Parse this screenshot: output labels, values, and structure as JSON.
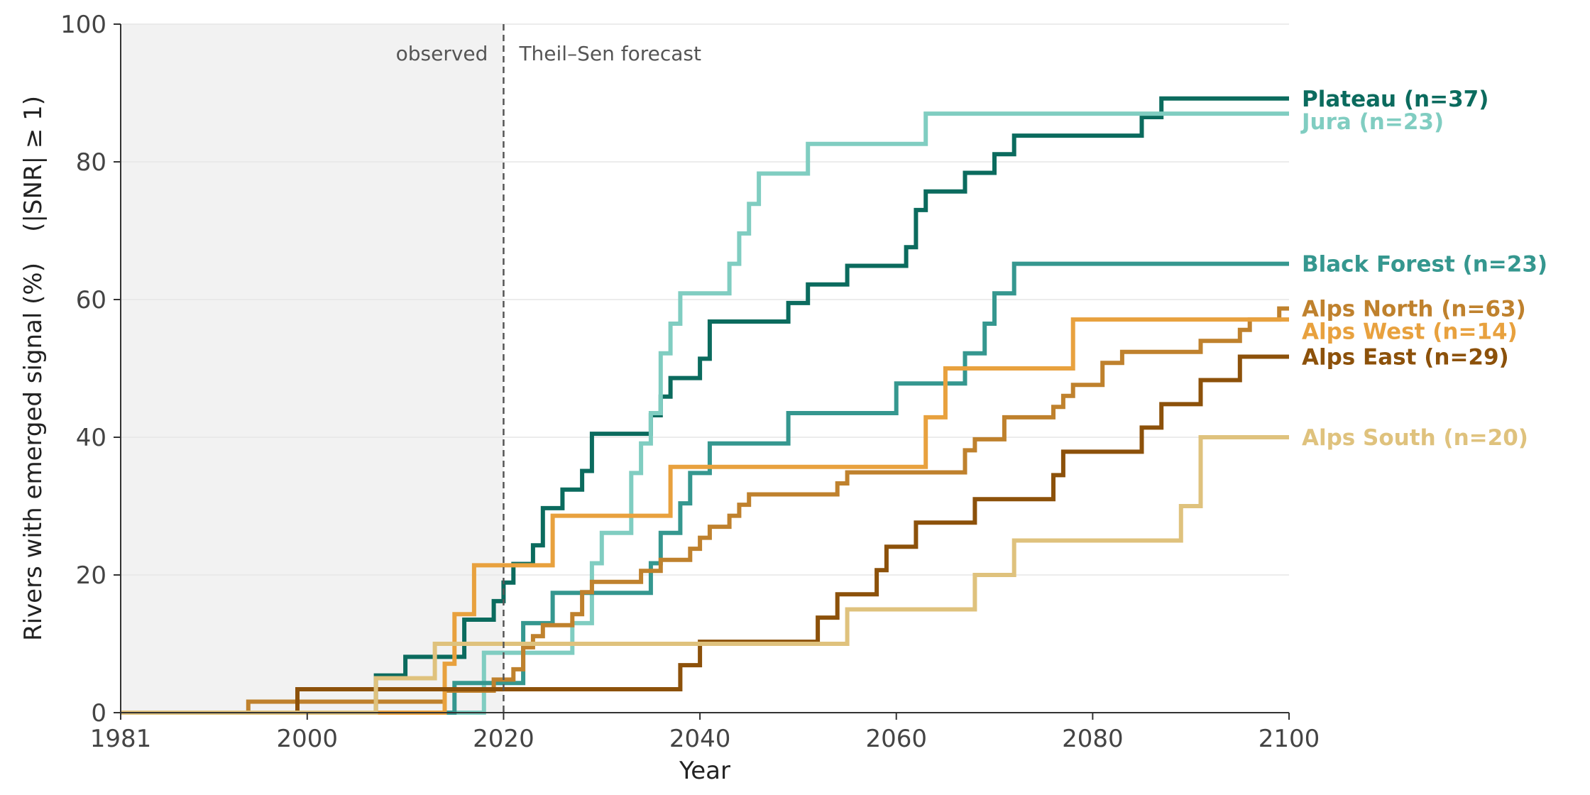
{
  "chart_data": {
    "type": "line",
    "step": true,
    "xlabel": "Year",
    "ylabel": "Rivers with emerged signal (%)    (|SNR| ≥ 1)",
    "xlim": [
      1981,
      2100
    ],
    "ylim": [
      0,
      100
    ],
    "xticks": [
      "1981",
      "2000",
      "2020",
      "2040",
      "2060",
      "2080",
      "2100"
    ],
    "xtick_values": [
      1981,
      2000,
      2020,
      2040,
      2060,
      2080,
      2100
    ],
    "yticks": [
      "0",
      "20",
      "40",
      "60",
      "80",
      "100"
    ],
    "ytick_values": [
      0,
      20,
      40,
      60,
      80,
      100
    ],
    "grid": "horizontal",
    "observed_end": 2020,
    "annotations": {
      "observed": "observed",
      "forecast": "Theil–Sen forecast"
    },
    "colors": {
      "observed_band": "#f2f2f2",
      "divider": "#555555",
      "grid": "#e6e6e6"
    },
    "series": [
      {
        "name": "Plateau  (n=37)",
        "color": "#0b6b5e",
        "points": [
          [
            1981,
            0
          ],
          [
            2007,
            0
          ],
          [
            2007,
            5.4
          ],
          [
            2010,
            5.4
          ],
          [
            2010,
            8.1
          ],
          [
            2016,
            8.1
          ],
          [
            2016,
            13.5
          ],
          [
            2019,
            13.5
          ],
          [
            2019,
            16.2
          ],
          [
            2020,
            16.2
          ],
          [
            2020,
            18.9
          ],
          [
            2021,
            18.9
          ],
          [
            2021,
            21.6
          ],
          [
            2023,
            21.6
          ],
          [
            2023,
            24.3
          ],
          [
            2024,
            24.3
          ],
          [
            2024,
            29.7
          ],
          [
            2026,
            29.7
          ],
          [
            2026,
            32.4
          ],
          [
            2028,
            32.4
          ],
          [
            2028,
            35.1
          ],
          [
            2029,
            35.1
          ],
          [
            2029,
            40.5
          ],
          [
            2035,
            40.5
          ],
          [
            2035,
            43.2
          ],
          [
            2036,
            43.2
          ],
          [
            2036,
            45.9
          ],
          [
            2037,
            45.9
          ],
          [
            2037,
            48.6
          ],
          [
            2040,
            48.6
          ],
          [
            2040,
            51.4
          ],
          [
            2041,
            51.4
          ],
          [
            2041,
            56.8
          ],
          [
            2049,
            56.8
          ],
          [
            2049,
            59.5
          ],
          [
            2051,
            59.5
          ],
          [
            2051,
            62.2
          ],
          [
            2055,
            62.2
          ],
          [
            2055,
            64.9
          ],
          [
            2061,
            64.9
          ],
          [
            2061,
            67.6
          ],
          [
            2062,
            67.6
          ],
          [
            2062,
            73.0
          ],
          [
            2063,
            73.0
          ],
          [
            2063,
            75.7
          ],
          [
            2067,
            75.7
          ],
          [
            2067,
            78.4
          ],
          [
            2070,
            78.4
          ],
          [
            2070,
            81.1
          ],
          [
            2072,
            81.1
          ],
          [
            2072,
            83.8
          ],
          [
            2085,
            83.8
          ],
          [
            2085,
            86.5
          ],
          [
            2087,
            86.5
          ],
          [
            2087,
            89.2
          ],
          [
            2100,
            89.2
          ]
        ]
      },
      {
        "name": "Jura  (n=23)",
        "color": "#80cdc1",
        "points": [
          [
            1981,
            0
          ],
          [
            2018,
            0
          ],
          [
            2018,
            8.7
          ],
          [
            2027,
            8.7
          ],
          [
            2027,
            13.0
          ],
          [
            2029,
            13.0
          ],
          [
            2029,
            21.7
          ],
          [
            2030,
            21.7
          ],
          [
            2030,
            26.1
          ],
          [
            2033,
            26.1
          ],
          [
            2033,
            34.8
          ],
          [
            2034,
            34.8
          ],
          [
            2034,
            39.1
          ],
          [
            2035,
            39.1
          ],
          [
            2035,
            43.5
          ],
          [
            2036,
            43.5
          ],
          [
            2036,
            52.2
          ],
          [
            2037,
            52.2
          ],
          [
            2037,
            56.5
          ],
          [
            2038,
            56.5
          ],
          [
            2038,
            60.9
          ],
          [
            2043,
            60.9
          ],
          [
            2043,
            65.2
          ],
          [
            2044,
            65.2
          ],
          [
            2044,
            69.6
          ],
          [
            2045,
            69.6
          ],
          [
            2045,
            73.9
          ],
          [
            2046,
            73.9
          ],
          [
            2046,
            78.3
          ],
          [
            2051,
            78.3
          ],
          [
            2051,
            82.6
          ],
          [
            2063,
            82.6
          ],
          [
            2063,
            87.0
          ],
          [
            2100,
            87.0
          ]
        ]
      },
      {
        "name": "Black Forest  (n=23)",
        "color": "#35978f",
        "points": [
          [
            1981,
            0
          ],
          [
            2015,
            0
          ],
          [
            2015,
            4.3
          ],
          [
            2022,
            4.3
          ],
          [
            2022,
            13.0
          ],
          [
            2025,
            13.0
          ],
          [
            2025,
            17.4
          ],
          [
            2035,
            17.4
          ],
          [
            2035,
            21.7
          ],
          [
            2036,
            21.7
          ],
          [
            2036,
            26.1
          ],
          [
            2038,
            26.1
          ],
          [
            2038,
            30.4
          ],
          [
            2039,
            30.4
          ],
          [
            2039,
            34.8
          ],
          [
            2041,
            34.8
          ],
          [
            2041,
            39.1
          ],
          [
            2049,
            39.1
          ],
          [
            2049,
            43.5
          ],
          [
            2060,
            43.5
          ],
          [
            2060,
            47.8
          ],
          [
            2067,
            47.8
          ],
          [
            2067,
            52.2
          ],
          [
            2069,
            52.2
          ],
          [
            2069,
            56.5
          ],
          [
            2070,
            56.5
          ],
          [
            2070,
            60.9
          ],
          [
            2072,
            60.9
          ],
          [
            2072,
            65.2
          ],
          [
            2100,
            65.2
          ]
        ]
      },
      {
        "name": "Alps North  (n=63)",
        "color": "#bf812d",
        "points": [
          [
            1981,
            0
          ],
          [
            1994,
            0
          ],
          [
            1994,
            1.6
          ],
          [
            2014,
            1.6
          ],
          [
            2014,
            3.2
          ],
          [
            2019,
            3.2
          ],
          [
            2019,
            4.8
          ],
          [
            2021,
            4.8
          ],
          [
            2021,
            6.3
          ],
          [
            2022,
            6.3
          ],
          [
            2022,
            9.5
          ],
          [
            2023,
            9.5
          ],
          [
            2023,
            11.1
          ],
          [
            2024,
            11.1
          ],
          [
            2024,
            12.7
          ],
          [
            2027,
            12.7
          ],
          [
            2027,
            14.3
          ],
          [
            2028,
            14.3
          ],
          [
            2028,
            17.5
          ],
          [
            2029,
            17.5
          ],
          [
            2029,
            19.0
          ],
          [
            2034,
            19.0
          ],
          [
            2034,
            20.6
          ],
          [
            2036,
            20.6
          ],
          [
            2036,
            22.2
          ],
          [
            2039,
            22.2
          ],
          [
            2039,
            23.8
          ],
          [
            2040,
            23.8
          ],
          [
            2040,
            25.4
          ],
          [
            2041,
            25.4
          ],
          [
            2041,
            27.0
          ],
          [
            2043,
            27.0
          ],
          [
            2043,
            28.6
          ],
          [
            2044,
            28.6
          ],
          [
            2044,
            30.2
          ],
          [
            2045,
            30.2
          ],
          [
            2045,
            31.7
          ],
          [
            2054,
            31.7
          ],
          [
            2054,
            33.3
          ],
          [
            2055,
            33.3
          ],
          [
            2055,
            34.9
          ],
          [
            2067,
            34.9
          ],
          [
            2067,
            38.1
          ],
          [
            2068,
            38.1
          ],
          [
            2068,
            39.7
          ],
          [
            2071,
            39.7
          ],
          [
            2071,
            42.9
          ],
          [
            2076,
            42.9
          ],
          [
            2076,
            44.4
          ],
          [
            2077,
            44.4
          ],
          [
            2077,
            46.0
          ],
          [
            2078,
            46.0
          ],
          [
            2078,
            47.6
          ],
          [
            2081,
            47.6
          ],
          [
            2081,
            50.8
          ],
          [
            2083,
            50.8
          ],
          [
            2083,
            52.4
          ],
          [
            2091,
            52.4
          ],
          [
            2091,
            54.0
          ],
          [
            2095,
            54.0
          ],
          [
            2095,
            55.6
          ],
          [
            2096,
            55.6
          ],
          [
            2096,
            57.1
          ],
          [
            2099,
            57.1
          ],
          [
            2099,
            58.7
          ],
          [
            2100,
            58.7
          ]
        ]
      },
      {
        "name": "Alps West  (n=14)",
        "color": "#e8a13e",
        "points": [
          [
            1981,
            0
          ],
          [
            2014,
            0
          ],
          [
            2014,
            7.1
          ],
          [
            2015,
            7.1
          ],
          [
            2015,
            14.3
          ],
          [
            2017,
            14.3
          ],
          [
            2017,
            21.4
          ],
          [
            2025,
            21.4
          ],
          [
            2025,
            28.6
          ],
          [
            2037,
            28.6
          ],
          [
            2037,
            35.7
          ],
          [
            2063,
            35.7
          ],
          [
            2063,
            42.9
          ],
          [
            2065,
            42.9
          ],
          [
            2065,
            50.0
          ],
          [
            2078,
            50.0
          ],
          [
            2078,
            57.1
          ],
          [
            2100,
            57.1
          ]
        ]
      },
      {
        "name": "Alps East  (n=29)",
        "color": "#8c510a",
        "points": [
          [
            1981,
            0
          ],
          [
            1999,
            0
          ],
          [
            1999,
            3.4
          ],
          [
            2038,
            3.4
          ],
          [
            2038,
            6.9
          ],
          [
            2040,
            6.9
          ],
          [
            2040,
            10.3
          ],
          [
            2052,
            10.3
          ],
          [
            2052,
            13.8
          ],
          [
            2054,
            13.8
          ],
          [
            2054,
            17.2
          ],
          [
            2058,
            17.2
          ],
          [
            2058,
            20.7
          ],
          [
            2059,
            20.7
          ],
          [
            2059,
            24.1
          ],
          [
            2062,
            24.1
          ],
          [
            2062,
            27.6
          ],
          [
            2068,
            27.6
          ],
          [
            2068,
            31.0
          ],
          [
            2076,
            31.0
          ],
          [
            2076,
            34.5
          ],
          [
            2077,
            34.5
          ],
          [
            2077,
            37.9
          ],
          [
            2085,
            37.9
          ],
          [
            2085,
            41.4
          ],
          [
            2087,
            41.4
          ],
          [
            2087,
            44.8
          ],
          [
            2091,
            44.8
          ],
          [
            2091,
            48.3
          ],
          [
            2095,
            48.3
          ],
          [
            2095,
            51.7
          ],
          [
            2100,
            51.7
          ]
        ]
      },
      {
        "name": "Alps South  (n=20)",
        "color": "#dfc27d",
        "points": [
          [
            1981,
            0
          ],
          [
            2007,
            0
          ],
          [
            2007,
            5.0
          ],
          [
            2013,
            5.0
          ],
          [
            2013,
            10.0
          ],
          [
            2055,
            10.0
          ],
          [
            2055,
            15.0
          ],
          [
            2068,
            15.0
          ],
          [
            2068,
            20.0
          ],
          [
            2072,
            20.0
          ],
          [
            2072,
            25.0
          ],
          [
            2089,
            25.0
          ],
          [
            2089,
            30.0
          ],
          [
            2091,
            30.0
          ],
          [
            2091,
            40.0
          ],
          [
            2100,
            40.0
          ]
        ]
      }
    ]
  }
}
